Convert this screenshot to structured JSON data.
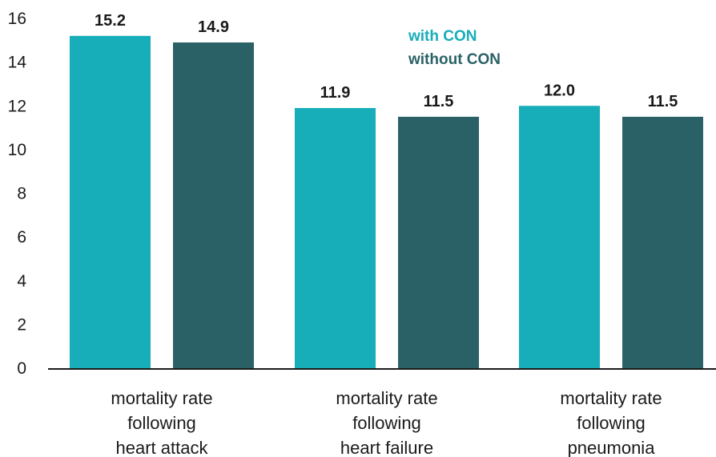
{
  "chart_data": {
    "type": "bar",
    "categories": [
      [
        "mortality rate",
        "following",
        "heart attack"
      ],
      [
        "mortality rate",
        "following",
        "heart failure"
      ],
      [
        "mortality rate",
        "following",
        "pneumonia"
      ]
    ],
    "series": [
      {
        "name": "with CON",
        "color": "#17adb9",
        "values": [
          15.2,
          11.9,
          12.0
        ],
        "labels": [
          "15.2",
          "11.9",
          "12.0"
        ]
      },
      {
        "name": "without CON",
        "color": "#2a6166",
        "values": [
          14.9,
          11.5,
          11.5
        ],
        "labels": [
          "14.9",
          "11.5",
          "11.5"
        ]
      }
    ],
    "ylim": [
      0,
      16
    ],
    "yticks": [
      0,
      2,
      4,
      6,
      8,
      10,
      12,
      14,
      16
    ],
    "title": "",
    "xlabel": "",
    "ylabel": "",
    "grid": false,
    "legend": "top-right"
  }
}
